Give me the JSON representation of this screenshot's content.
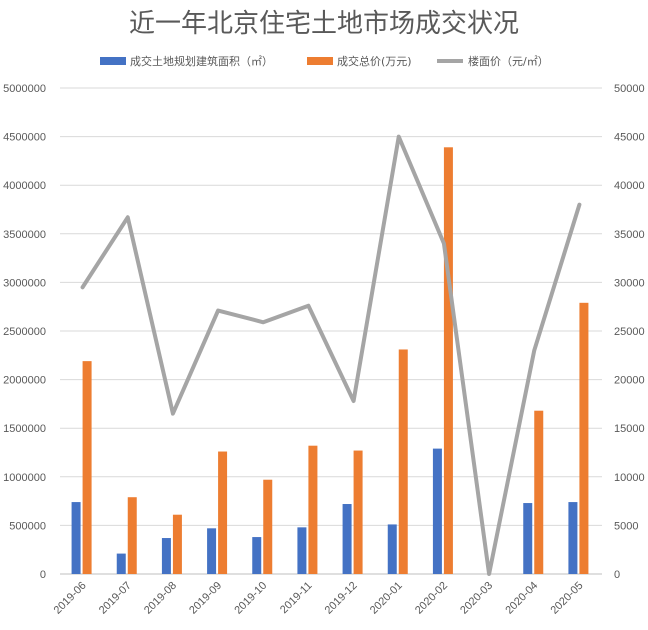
{
  "chart_data": {
    "type": "bar",
    "title": "近一年北京住宅土地市场成交状况",
    "categories": [
      "2019-06",
      "2019-07",
      "2019-08",
      "2019-09",
      "2019-10",
      "2019-11",
      "2019-12",
      "2020-01",
      "2020-02",
      "2020-03",
      "2020-04",
      "2020-05"
    ],
    "series": [
      {
        "name": "成交土地规划建筑面积（㎡）",
        "type": "bar",
        "axis": "left",
        "color": "#4472c4",
        "values": [
          740000,
          210000,
          370000,
          470000,
          380000,
          480000,
          720000,
          510000,
          1290000,
          0,
          730000,
          740000
        ]
      },
      {
        "name": "成交总价(万元)",
        "type": "bar",
        "axis": "left",
        "color": "#ed7d31",
        "values": [
          2190000,
          790000,
          610000,
          1260000,
          970000,
          1320000,
          1270000,
          2310000,
          4390000,
          0,
          1680000,
          2790000
        ]
      },
      {
        "name": "楼面价（元/㎡）",
        "type": "line",
        "axis": "right",
        "color": "#a5a5a5",
        "values": [
          29500,
          36700,
          16500,
          27100,
          25900,
          27600,
          17800,
          45000,
          34000,
          0,
          23000,
          38000
        ]
      }
    ],
    "y_left": {
      "min": 0,
      "max": 5000000,
      "step": 500000,
      "ticks": [
        "0",
        "500000",
        "1000000",
        "1500000",
        "2000000",
        "2500000",
        "3000000",
        "3500000",
        "4000000",
        "4500000",
        "5000000"
      ]
    },
    "y_right": {
      "min": 0,
      "max": 50000,
      "step": 5000,
      "ticks": [
        "0",
        "5000",
        "10000",
        "15000",
        "20000",
        "25000",
        "30000",
        "35000",
        "40000",
        "45000",
        "50000"
      ]
    },
    "grid": true,
    "legend_position": "top"
  }
}
